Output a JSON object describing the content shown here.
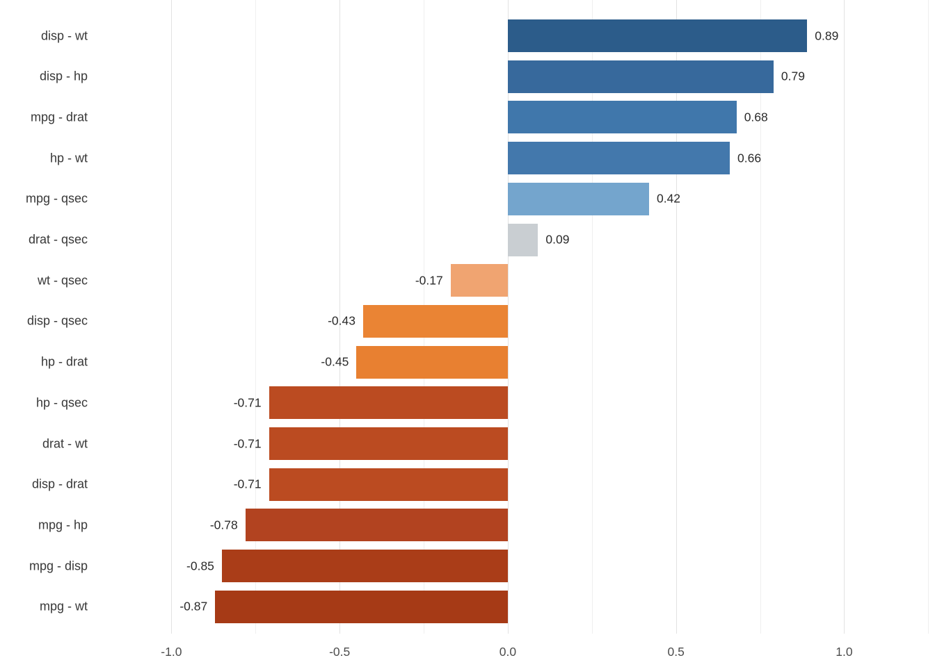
{
  "chart_data": {
    "type": "bar",
    "orientation": "horizontal",
    "title": "",
    "xlabel": "",
    "ylabel": "",
    "grid": true,
    "legend": false,
    "background": "#ffffff",
    "categories": [
      "disp - wt",
      "disp - hp",
      "mpg - drat",
      "hp - wt",
      "mpg - qsec",
      "drat - qsec",
      "wt - qsec",
      "disp - qsec",
      "hp - drat",
      "hp - qsec",
      "drat - wt",
      "disp - drat",
      "mpg - hp",
      "mpg - disp",
      "mpg - wt"
    ],
    "values": [
      0.89,
      0.79,
      0.68,
      0.66,
      0.42,
      0.09,
      -0.17,
      -0.43,
      -0.45,
      -0.71,
      -0.71,
      -0.71,
      -0.78,
      -0.85,
      -0.87
    ],
    "value_labels": [
      "0.89",
      "0.79",
      "0.68",
      "0.66",
      "0.42",
      "0.09",
      "-0.17",
      "-0.43",
      "-0.45",
      "-0.71",
      "-0.71",
      "-0.71",
      "-0.78",
      "-0.85",
      "-0.87"
    ],
    "bar_colors": [
      "#2c5c8a",
      "#37699c",
      "#4077ab",
      "#4378ac",
      "#74a5cd",
      "#c9ced2",
      "#f0a471",
      "#ea8434",
      "#e88031",
      "#bb4b21",
      "#bb4b21",
      "#bb4b21",
      "#b24320",
      "#aa3d18",
      "#a63a16"
    ],
    "xlim": [
      -1.22,
      1.27
    ],
    "x_major_ticks": [
      -1.0,
      -0.5,
      0.0,
      0.5,
      1.0
    ],
    "x_major_tick_labels": [
      "-1.0",
      "-0.5",
      "0.0",
      "0.5",
      "1.0"
    ],
    "x_minor_ticks": [
      -0.75,
      -0.25,
      0.25,
      0.75,
      1.25
    ],
    "colors": {
      "grid_major": "#e2e2e2",
      "grid_minor": "#efefef",
      "category_text": "#383838",
      "value_text": "#2b2b2b",
      "tick_text": "#4d4d4d"
    }
  }
}
